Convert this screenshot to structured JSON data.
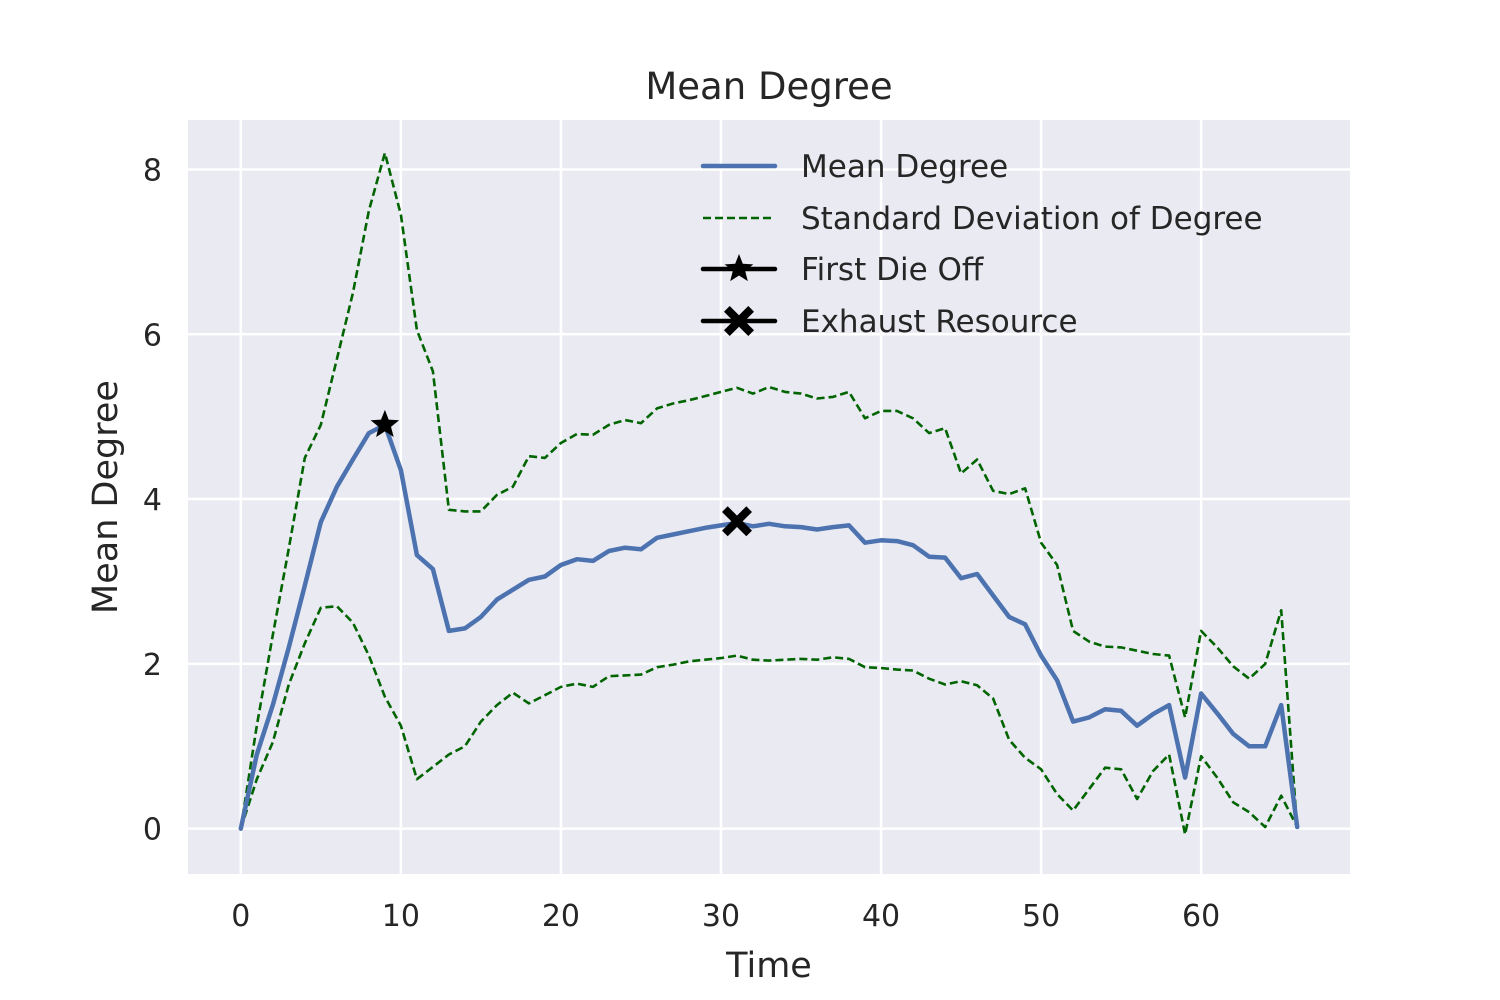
{
  "chart_data": {
    "type": "line",
    "title": "Mean Degree",
    "xlabel": "Time",
    "ylabel": "Mean Degree",
    "xlim": [
      -3.3,
      69.3
    ],
    "ylim": [
      -0.55,
      8.6
    ],
    "xticks": [
      0,
      10,
      20,
      30,
      40,
      50,
      60
    ],
    "yticks": [
      0,
      2,
      4,
      6,
      8
    ],
    "grid": true,
    "legend_position": "top-right",
    "series": [
      {
        "name": "Mean Degree",
        "color": "#4c72b0",
        "style": "solid",
        "x": [
          0,
          1,
          2,
          3,
          4,
          5,
          6,
          7,
          8,
          9,
          10,
          11,
          12,
          13,
          14,
          15,
          16,
          17,
          18,
          19,
          20,
          21,
          22,
          23,
          24,
          25,
          26,
          27,
          28,
          29,
          30,
          31,
          32,
          33,
          34,
          35,
          36,
          37,
          38,
          39,
          40,
          41,
          42,
          43,
          44,
          45,
          46,
          47,
          48,
          49,
          50,
          51,
          52,
          53,
          54,
          55,
          56,
          57,
          58,
          59,
          60,
          61,
          62,
          63,
          64,
          65,
          66
        ],
        "y": [
          0.0,
          0.9,
          1.5,
          2.2,
          2.95,
          3.72,
          4.15,
          4.48,
          4.8,
          4.9,
          4.35,
          3.32,
          3.15,
          2.4,
          2.43,
          2.57,
          2.78,
          2.9,
          3.02,
          3.06,
          3.2,
          3.27,
          3.25,
          3.37,
          3.41,
          3.39,
          3.53,
          3.57,
          3.61,
          3.65,
          3.68,
          3.71,
          3.67,
          3.7,
          3.67,
          3.66,
          3.63,
          3.66,
          3.68,
          3.47,
          3.5,
          3.49,
          3.44,
          3.3,
          3.29,
          3.04,
          3.09,
          2.83,
          2.57,
          2.48,
          2.1,
          1.8,
          1.3,
          1.35,
          1.45,
          1.43,
          1.25,
          1.39,
          1.5,
          0.62,
          1.64,
          1.4,
          1.15,
          1.0,
          1.0,
          1.5,
          0.02
        ]
      },
      {
        "name": "Standard Deviation of Degree",
        "color": "#006400",
        "style": "dashed",
        "x": [
          0,
          1,
          2,
          3,
          4,
          5,
          6,
          7,
          8,
          9,
          10,
          11,
          12,
          13,
          14,
          15,
          16,
          17,
          18,
          19,
          20,
          21,
          22,
          23,
          24,
          25,
          26,
          27,
          28,
          29,
          30,
          31,
          32,
          33,
          34,
          35,
          36,
          37,
          38,
          39,
          40,
          41,
          42,
          43,
          44,
          45,
          46,
          47,
          48,
          49,
          50,
          51,
          52,
          53,
          54,
          55,
          56,
          57,
          58,
          59,
          60,
          61,
          62,
          63,
          64,
          65,
          66
        ],
        "y": [
          0.0,
          1.25,
          2.35,
          3.4,
          4.5,
          4.9,
          5.7,
          6.5,
          7.5,
          8.2,
          7.45,
          6.05,
          5.55,
          3.87,
          3.85,
          3.85,
          4.05,
          4.15,
          4.52,
          4.5,
          4.68,
          4.79,
          4.78,
          4.9,
          4.96,
          4.92,
          5.1,
          5.16,
          5.2,
          5.25,
          5.3,
          5.35,
          5.28,
          5.36,
          5.3,
          5.28,
          5.22,
          5.24,
          5.3,
          4.98,
          5.07,
          5.07,
          4.98,
          4.8,
          4.86,
          4.31,
          4.48,
          4.1,
          4.06,
          4.13,
          3.47,
          3.2,
          2.4,
          2.27,
          2.21,
          2.2,
          2.16,
          2.12,
          2.1,
          1.35,
          2.4,
          2.2,
          1.97,
          1.82,
          2.0,
          2.65,
          0.0
        ]
      },
      {
        "name": "",
        "color": "#006400",
        "style": "dashed",
        "x": [
          0,
          1,
          2,
          3,
          4,
          5,
          6,
          7,
          8,
          9,
          10,
          11,
          12,
          13,
          14,
          15,
          16,
          17,
          18,
          19,
          20,
          21,
          22,
          23,
          24,
          25,
          26,
          27,
          28,
          29,
          30,
          31,
          32,
          33,
          34,
          35,
          36,
          37,
          38,
          39,
          40,
          41,
          42,
          43,
          44,
          45,
          46,
          47,
          48,
          49,
          50,
          51,
          52,
          53,
          54,
          55,
          56,
          57,
          58,
          59,
          60,
          61,
          62,
          63,
          64,
          65,
          66
        ],
        "y": [
          0.0,
          0.6,
          1.05,
          1.75,
          2.25,
          2.68,
          2.7,
          2.5,
          2.1,
          1.6,
          1.25,
          0.6,
          0.75,
          0.9,
          1.0,
          1.3,
          1.5,
          1.65,
          1.52,
          1.62,
          1.72,
          1.76,
          1.72,
          1.85,
          1.86,
          1.87,
          1.96,
          1.99,
          2.03,
          2.05,
          2.07,
          2.1,
          2.05,
          2.04,
          2.05,
          2.06,
          2.05,
          2.08,
          2.06,
          1.96,
          1.95,
          1.93,
          1.92,
          1.82,
          1.75,
          1.79,
          1.74,
          1.58,
          1.08,
          0.86,
          0.72,
          0.42,
          0.22,
          0.48,
          0.74,
          0.72,
          0.36,
          0.7,
          0.9,
          -0.07,
          0.88,
          0.62,
          0.32,
          0.2,
          0.02,
          0.4,
          0.02
        ]
      }
    ],
    "markers": [
      {
        "name": "First Die Off",
        "shape": "star",
        "x": 9,
        "y": 4.9,
        "color": "#000000"
      },
      {
        "name": "Exhaust Resource",
        "shape": "x",
        "x": 31,
        "y": 3.73,
        "color": "#000000"
      }
    ]
  }
}
